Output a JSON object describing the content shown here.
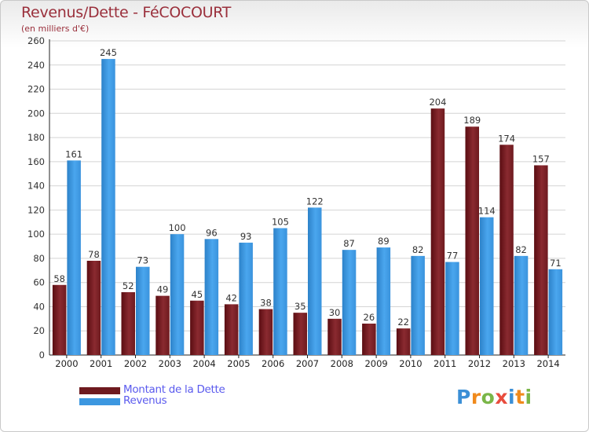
{
  "chart_data": {
    "type": "bar",
    "title": "Revenus/Dette - FéCOCOURT",
    "subtitle": "(en milliers d'€)",
    "categories": [
      "2000",
      "2001",
      "2002",
      "2003",
      "2004",
      "2005",
      "2006",
      "2007",
      "2008",
      "2009",
      "2010",
      "2011",
      "2012",
      "2013",
      "2014"
    ],
    "series": [
      {
        "name": "Montant de la Dette",
        "color": "#7a1d22",
        "values": [
          58,
          78,
          52,
          49,
          45,
          42,
          38,
          35,
          30,
          26,
          22,
          204,
          189,
          174,
          157
        ]
      },
      {
        "name": "Revenus",
        "color": "#3c97e0",
        "values": [
          161,
          245,
          73,
          100,
          96,
          93,
          105,
          122,
          87,
          89,
          82,
          77,
          114,
          82,
          71
        ]
      }
    ],
    "ylim": [
      0,
      260
    ],
    "yticks": [
      0,
      20,
      40,
      60,
      80,
      100,
      120,
      140,
      160,
      180,
      200,
      220,
      240,
      260
    ],
    "grid": true,
    "legend_position": "bottom-left",
    "xlabel": "",
    "ylabel": ""
  },
  "legend": {
    "debt_label": "Montant de la Dette",
    "revenue_label": "Revenus",
    "debt_color": "#6e1a1f",
    "revenue_color": "#3c97e0"
  },
  "branding": {
    "logo_letters": [
      "P",
      "r",
      "o",
      "x",
      "i",
      "t",
      "i"
    ]
  }
}
